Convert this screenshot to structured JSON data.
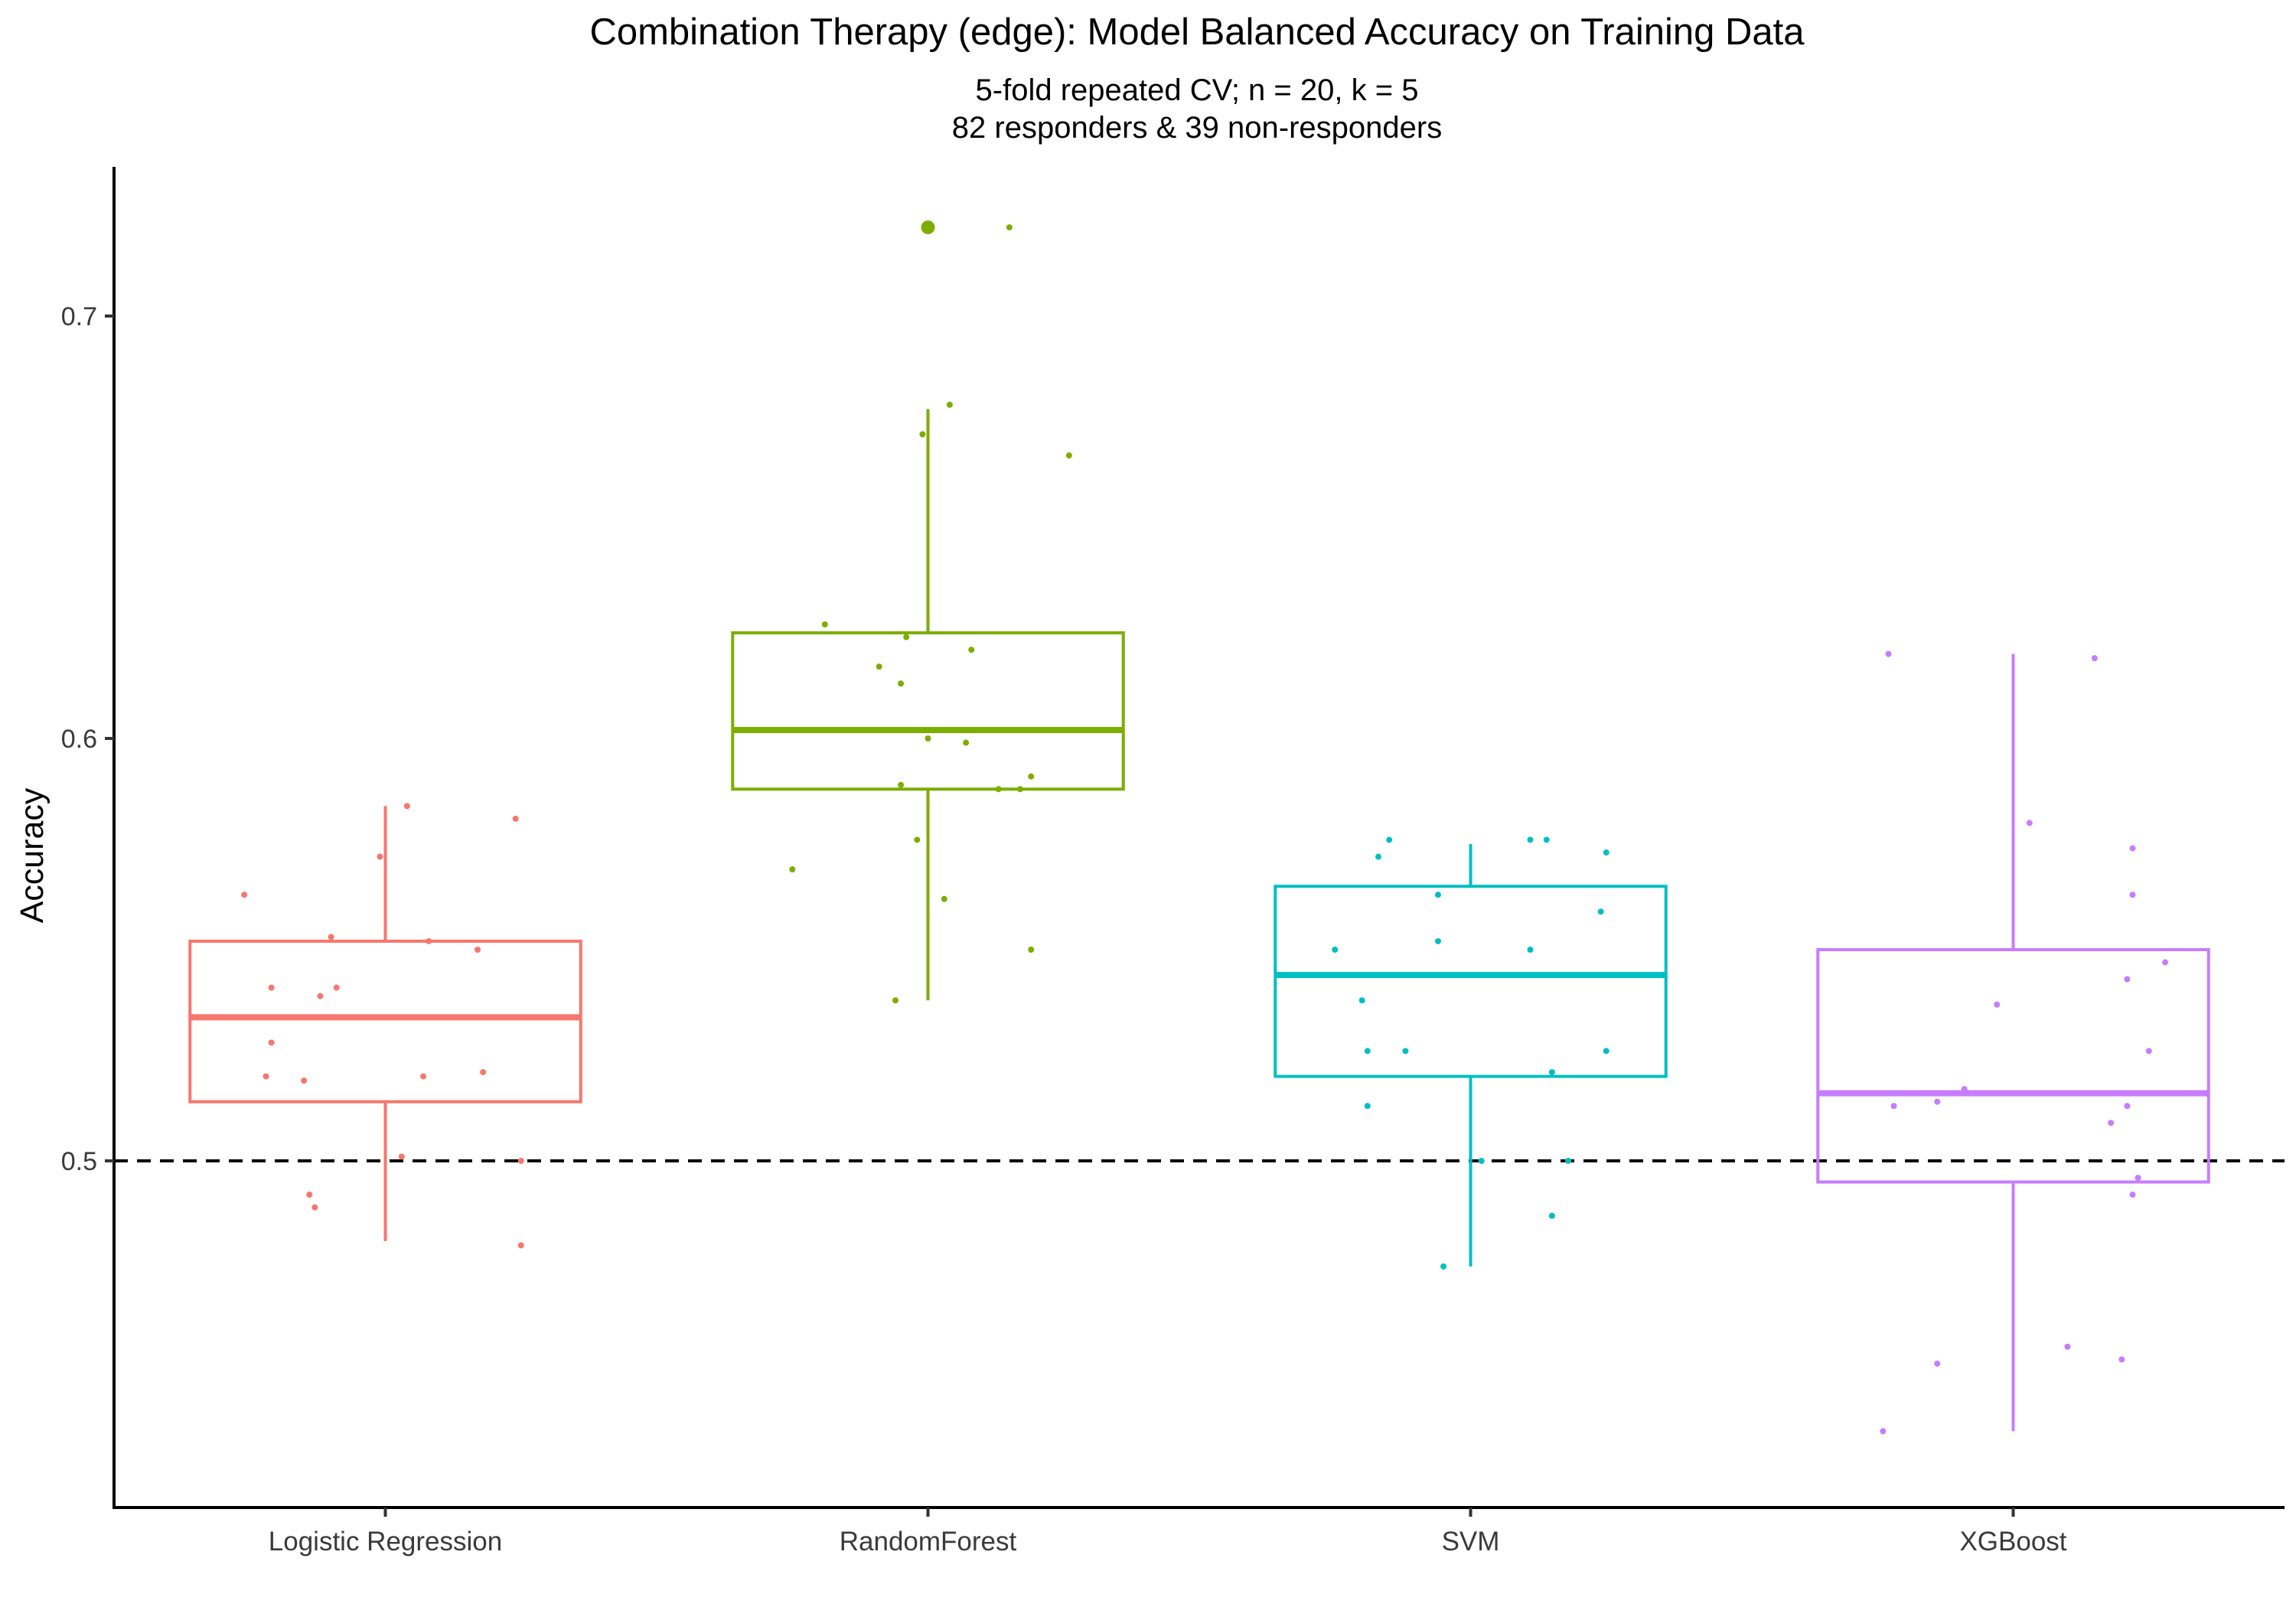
{
  "chart_data": {
    "type": "boxplot",
    "title": "Combination Therapy (edge): Model Balanced Accuracy on Training Data",
    "subtitle_line1": "5-fold repeated CV; n = 20, k = 5",
    "subtitle_line2": "82 responders & 39 non-responders",
    "xlabel": "",
    "ylabel": "Accuracy",
    "ylim": [
      0.415,
      0.735
    ],
    "yticks": [
      0.5,
      0.6,
      0.7
    ],
    "ytick_labels": [
      "0.5",
      "0.6",
      "0.7"
    ],
    "reference_line": 0.5,
    "grid": false,
    "legend": "none",
    "categories": [
      "Logistic Regression",
      "RandomForest",
      "SVM",
      "XGBoost"
    ],
    "colors": [
      "#F8766D",
      "#7CAE00",
      "#00BFC4",
      "#C77CFF"
    ],
    "boxes": [
      {
        "q1": 0.514,
        "median": 0.534,
        "q3": 0.552,
        "whisker_low": 0.481,
        "whisker_high": 0.584,
        "outliers": []
      },
      {
        "q1": 0.588,
        "median": 0.602,
        "q3": 0.625,
        "whisker_low": 0.538,
        "whisker_high": 0.678,
        "outliers": [
          0.721
        ]
      },
      {
        "q1": 0.52,
        "median": 0.544,
        "q3": 0.565,
        "whisker_low": 0.475,
        "whisker_high": 0.575,
        "outliers": []
      },
      {
        "q1": 0.495,
        "median": 0.516,
        "q3": 0.55,
        "whisker_low": 0.436,
        "whisker_high": 0.62,
        "outliers": []
      }
    ],
    "points": [
      [
        {
          "dx": -0.26,
          "y": 0.563
        },
        {
          "dx": -0.01,
          "y": 0.572
        },
        {
          "dx": 0.04,
          "y": 0.584
        },
        {
          "dx": 0.24,
          "y": 0.581
        },
        {
          "dx": -0.1,
          "y": 0.553
        },
        {
          "dx": 0.08,
          "y": 0.552
        },
        {
          "dx": 0.17,
          "y": 0.55
        },
        {
          "dx": -0.21,
          "y": 0.541
        },
        {
          "dx": -0.09,
          "y": 0.541
        },
        {
          "dx": -0.12,
          "y": 0.539
        },
        {
          "dx": -0.21,
          "y": 0.528
        },
        {
          "dx": -0.22,
          "y": 0.52
        },
        {
          "dx": -0.15,
          "y": 0.519
        },
        {
          "dx": 0.07,
          "y": 0.52
        },
        {
          "dx": 0.18,
          "y": 0.521
        },
        {
          "dx": 0.03,
          "y": 0.501
        },
        {
          "dx": 0.25,
          "y": 0.5
        },
        {
          "dx": -0.14,
          "y": 0.492
        },
        {
          "dx": -0.13,
          "y": 0.489
        },
        {
          "dx": 0.25,
          "y": 0.48
        }
      ],
      [
        {
          "dx": 0.15,
          "y": 0.721
        },
        {
          "dx": 0.04,
          "y": 0.679
        },
        {
          "dx": -0.01,
          "y": 0.672
        },
        {
          "dx": 0.26,
          "y": 0.667
        },
        {
          "dx": -0.19,
          "y": 0.627
        },
        {
          "dx": -0.04,
          "y": 0.624
        },
        {
          "dx": 0.08,
          "y": 0.621
        },
        {
          "dx": -0.09,
          "y": 0.617
        },
        {
          "dx": -0.05,
          "y": 0.613
        },
        {
          "dx": 0.07,
          "y": 0.599
        },
        {
          "dx": 0.19,
          "y": 0.591
        },
        {
          "dx": -0.05,
          "y": 0.589
        },
        {
          "dx": 0.13,
          "y": 0.588
        },
        {
          "dx": 0.17,
          "y": 0.588
        },
        {
          "dx": -0.25,
          "y": 0.569
        },
        {
          "dx": 0.03,
          "y": 0.562
        },
        {
          "dx": 0.19,
          "y": 0.55
        },
        {
          "dx": -0.06,
          "y": 0.538
        },
        {
          "dx": 0.0,
          "y": 0.6
        },
        {
          "dx": -0.02,
          "y": 0.576
        }
      ],
      [
        {
          "dx": -0.15,
          "y": 0.576
        },
        {
          "dx": -0.17,
          "y": 0.572
        },
        {
          "dx": 0.11,
          "y": 0.576
        },
        {
          "dx": 0.14,
          "y": 0.576
        },
        {
          "dx": 0.25,
          "y": 0.573
        },
        {
          "dx": -0.06,
          "y": 0.563
        },
        {
          "dx": 0.24,
          "y": 0.559
        },
        {
          "dx": -0.25,
          "y": 0.55
        },
        {
          "dx": -0.06,
          "y": 0.552
        },
        {
          "dx": 0.11,
          "y": 0.55
        },
        {
          "dx": -0.2,
          "y": 0.538
        },
        {
          "dx": -0.19,
          "y": 0.526
        },
        {
          "dx": -0.12,
          "y": 0.526
        },
        {
          "dx": 0.25,
          "y": 0.526
        },
        {
          "dx": 0.15,
          "y": 0.521
        },
        {
          "dx": -0.19,
          "y": 0.513
        },
        {
          "dx": 0.02,
          "y": 0.5
        },
        {
          "dx": 0.18,
          "y": 0.5
        },
        {
          "dx": 0.15,
          "y": 0.487
        },
        {
          "dx": -0.05,
          "y": 0.475
        }
      ],
      [
        {
          "dx": -0.23,
          "y": 0.62
        },
        {
          "dx": 0.15,
          "y": 0.619
        },
        {
          "dx": 0.03,
          "y": 0.58
        },
        {
          "dx": 0.22,
          "y": 0.574
        },
        {
          "dx": 0.22,
          "y": 0.563
        },
        {
          "dx": 0.28,
          "y": 0.547
        },
        {
          "dx": 0.21,
          "y": 0.543
        },
        {
          "dx": -0.03,
          "y": 0.537
        },
        {
          "dx": 0.25,
          "y": 0.526
        },
        {
          "dx": -0.09,
          "y": 0.517
        },
        {
          "dx": -0.14,
          "y": 0.514
        },
        {
          "dx": -0.22,
          "y": 0.513
        },
        {
          "dx": 0.21,
          "y": 0.513
        },
        {
          "dx": 0.18,
          "y": 0.509
        },
        {
          "dx": 0.23,
          "y": 0.496
        },
        {
          "dx": 0.22,
          "y": 0.492
        },
        {
          "dx": 0.1,
          "y": 0.456
        },
        {
          "dx": 0.2,
          "y": 0.453
        },
        {
          "dx": -0.14,
          "y": 0.452
        },
        {
          "dx": -0.24,
          "y": 0.436
        }
      ]
    ]
  }
}
